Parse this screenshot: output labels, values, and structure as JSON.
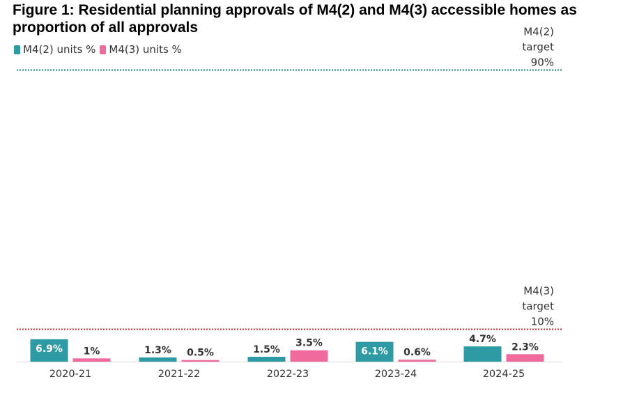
{
  "chart_data": {
    "type": "bar",
    "title_line1": "Figure 1: Residential planning approvals of M4(2) and M4(3) accessible homes as",
    "title_line2": "proportion of all approvals",
    "categories": [
      "2020-21",
      "2021-22",
      "2022-23",
      "2023-24",
      "2024-25"
    ],
    "series": [
      {
        "name": "M4(2) units %",
        "color": "#2e9aa3",
        "values": [
          6.9,
          1.3,
          1.5,
          6.1,
          4.7
        ],
        "labels": [
          "6.9%",
          "1.3%",
          "1.5%",
          "6.1%",
          "4.7%"
        ]
      },
      {
        "name": "M4(3) units %",
        "color": "#f06a9e",
        "values": [
          1,
          0.5,
          3.5,
          0.6,
          2.3
        ],
        "labels": [
          "1%",
          "0.5%",
          "3.5%",
          "0.6%",
          "2.3%"
        ]
      }
    ],
    "targets": [
      {
        "value": 90,
        "color": "#1f8a8a",
        "label_lines": [
          "M4(2)",
          "target",
          "90%"
        ]
      },
      {
        "value": 10,
        "color": "#d9262c",
        "label_lines": [
          "M4(3)",
          "target",
          "10%"
        ]
      }
    ],
    "ylim": [
      0,
      90
    ],
    "grid": false,
    "legend_position": "top-left"
  }
}
